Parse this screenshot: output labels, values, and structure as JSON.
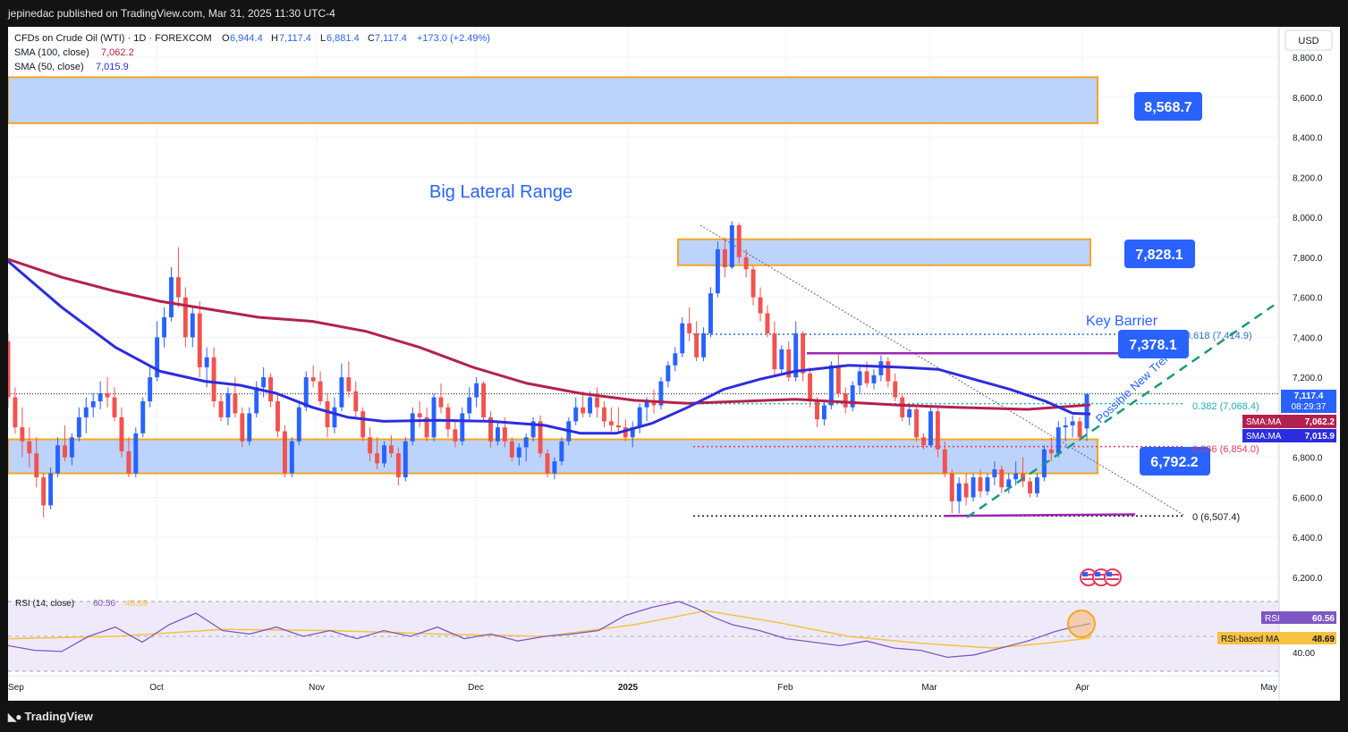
{
  "header": {
    "publisher_line": "jepinedac published on TradingView.com, Mar 31, 2025 11:30 UTC-4"
  },
  "footer": {
    "brand": "TradingView",
    "brand_icon": "tradingview-logo-icon"
  },
  "legend": {
    "symbol_line_prefix": "CFDs on Crude Oil (WTI) · 1D · FOREXCOM",
    "open_label": "O",
    "open": "6,944.4",
    "high_label": "H",
    "high": "7,117.4",
    "low_label": "L",
    "low": "6,881.4",
    "close_label": "C",
    "close": "7,117.4",
    "change": "+173.0 (+2.49%)",
    "sma100_label": "SMA (100, close)",
    "sma100_value": "7,062.2",
    "sma50_label": "SMA (50, close)",
    "sma50_value": "7,015.9"
  },
  "price_axis": {
    "currency": "USD",
    "ticks": [
      "8,800.0",
      "8,600.0",
      "8,400.0",
      "8,200.0",
      "8,000.0",
      "7,800.0",
      "7,600.0",
      "7,400.0",
      "7,200.0",
      "7,000.0",
      "6,800.0",
      "6,600.0",
      "6,400.0",
      "6,200.0"
    ],
    "last_price": "7,117.4",
    "countdown": "08:29:37",
    "sma100_tag": "SMA:MA",
    "sma100_tag_value": "7,062.2",
    "sma50_tag": "SMA:MA",
    "sma50_tag_value": "7,015.9"
  },
  "time_axis": {
    "labels": [
      "Sep",
      "Oct",
      "Nov",
      "Dec",
      "2025",
      "Feb",
      "Mar",
      "Apr",
      "May"
    ]
  },
  "annotations": {
    "range_title": "Big Lateral Range",
    "level_top": "8,568.7",
    "level_upper": "7,828.1",
    "key_barrier": "Key Barrier",
    "level_barrier": "7,378.1",
    "level_support": "6,792.2",
    "fib_618": "0.618 (7,414.9)",
    "fib_382": "0.382 (7,068.4)",
    "fib_236": "0.236 (6,854.0)",
    "fib_0": "0 (6,507.4)",
    "trend_label": "Possible New Trend"
  },
  "rsi": {
    "legend_label": "RSI (14, close)",
    "value": "60.56",
    "ma_value": "48.69",
    "tag_label": "RSI",
    "tag_ma_label": "RSI-based MA",
    "tick_40": "40.00"
  },
  "colors": {
    "candle_up": "#2962ff",
    "candle_down": "#f05350",
    "sma100": "#b3214e",
    "sma50": "#2c2ce0",
    "zone_fill": "#bcd3fb",
    "zone_border": "#f5a623",
    "label_blue": "#2962ff",
    "purple_line": "#9c27b0",
    "trend_teal": "#1a9a7a",
    "fib_blue": "#2d6fd1",
    "fib_teal": "#1ab0b0",
    "fib_red": "#e53960",
    "rsi_line": "#7e57c2",
    "rsi_ma": "#f5c242"
  },
  "chart_data": {
    "type": "candlestick",
    "title": "CFDs on Crude Oil (WTI) · 1D · FOREXCOM",
    "ylabel": "USD",
    "ylim": [
      6100,
      8950
    ],
    "grid": true,
    "x_range": [
      "2024-09-01",
      "2025-05-01"
    ],
    "ohlc_note": "daily candles, approximate",
    "candles": [
      [
        7380,
        7420,
        7050,
        7100
      ],
      [
        7100,
        7150,
        6920,
        6950
      ],
      [
        6950,
        7050,
        6800,
        6880
      ],
      [
        6880,
        6950,
        6750,
        6820
      ],
      [
        6820,
        6900,
        6650,
        6700
      ],
      [
        6700,
        6720,
        6500,
        6560
      ],
      [
        6560,
        6750,
        6540,
        6720
      ],
      [
        6720,
        6900,
        6700,
        6860
      ],
      [
        6860,
        6960,
        6780,
        6800
      ],
      [
        6800,
        6920,
        6760,
        6900
      ],
      [
        6900,
        7050,
        6880,
        7000
      ],
      [
        7000,
        7100,
        6920,
        7050
      ],
      [
        7050,
        7120,
        7000,
        7080
      ],
      [
        7080,
        7180,
        7040,
        7120
      ],
      [
        7120,
        7200,
        7050,
        7100
      ],
      [
        7100,
        7150,
        6980,
        7000
      ],
      [
        7000,
        7050,
        6800,
        6830
      ],
      [
        6830,
        6900,
        6700,
        6720
      ],
      [
        6720,
        6950,
        6700,
        6920
      ],
      [
        6920,
        7100,
        6900,
        7080
      ],
      [
        7080,
        7250,
        7050,
        7200
      ],
      [
        7200,
        7480,
        7180,
        7400
      ],
      [
        7400,
        7550,
        7350,
        7500
      ],
      [
        7500,
        7750,
        7480,
        7700
      ],
      [
        7700,
        7850,
        7550,
        7600
      ],
      [
        7600,
        7650,
        7350,
        7400
      ],
      [
        7400,
        7550,
        7350,
        7520
      ],
      [
        7520,
        7580,
        7200,
        7250
      ],
      [
        7250,
        7350,
        7150,
        7300
      ],
      [
        7300,
        7350,
        7050,
        7080
      ],
      [
        7080,
        7120,
        6980,
        7000
      ],
      [
        7000,
        7150,
        6960,
        7120
      ],
      [
        7120,
        7200,
        7000,
        7020
      ],
      [
        7020,
        7050,
        6850,
        6880
      ],
      [
        6880,
        7050,
        6860,
        7020
      ],
      [
        7020,
        7180,
        7000,
        7150
      ],
      [
        7150,
        7250,
        7100,
        7200
      ],
      [
        7200,
        7220,
        7050,
        7080
      ],
      [
        7080,
        7120,
        6900,
        6930
      ],
      [
        6930,
        6960,
        6700,
        6720
      ],
      [
        6720,
        6900,
        6700,
        6880
      ],
      [
        6880,
        7080,
        6860,
        7050
      ],
      [
        7050,
        7230,
        7030,
        7200
      ],
      [
        7200,
        7260,
        7150,
        7180
      ],
      [
        7180,
        7230,
        7060,
        7080
      ],
      [
        7080,
        7120,
        6900,
        6950
      ],
      [
        6950,
        7100,
        6920,
        7050
      ],
      [
        7050,
        7270,
        7030,
        7200
      ],
      [
        7200,
        7280,
        7100,
        7130
      ],
      [
        7130,
        7180,
        7000,
        7030
      ],
      [
        7030,
        7050,
        6880,
        6900
      ],
      [
        6900,
        6950,
        6780,
        6820
      ],
      [
        6820,
        6900,
        6740,
        6770
      ],
      [
        6770,
        6880,
        6750,
        6860
      ],
      [
        6860,
        6910,
        6800,
        6820
      ],
      [
        6820,
        6850,
        6660,
        6700
      ],
      [
        6700,
        6900,
        6680,
        6880
      ],
      [
        6880,
        7050,
        6860,
        7020
      ],
      [
        7020,
        7080,
        6950,
        7000
      ],
      [
        7000,
        7050,
        6880,
        6900
      ],
      [
        6900,
        7120,
        6880,
        7100
      ],
      [
        7100,
        7170,
        7020,
        7050
      ],
      [
        7050,
        7070,
        6900,
        6940
      ],
      [
        6940,
        6990,
        6850,
        6880
      ],
      [
        6880,
        7050,
        6860,
        7020
      ],
      [
        7020,
        7150,
        6980,
        7100
      ],
      [
        7100,
        7200,
        7050,
        7170
      ],
      [
        7170,
        7180,
        6980,
        7000
      ],
      [
        7000,
        7030,
        6850,
        6880
      ],
      [
        6880,
        6980,
        6860,
        6950
      ],
      [
        6950,
        7000,
        6850,
        6880
      ],
      [
        6880,
        6900,
        6780,
        6800
      ],
      [
        6800,
        6870,
        6760,
        6850
      ],
      [
        6850,
        6920,
        6780,
        6900
      ],
      [
        6900,
        7000,
        6880,
        6980
      ],
      [
        6980,
        7010,
        6800,
        6820
      ],
      [
        6820,
        6840,
        6700,
        6720
      ],
      [
        6720,
        6800,
        6690,
        6780
      ],
      [
        6780,
        6900,
        6760,
        6880
      ],
      [
        6880,
        7000,
        6860,
        6980
      ],
      [
        6980,
        7100,
        6960,
        7050
      ],
      [
        7050,
        7130,
        7000,
        7020
      ],
      [
        7020,
        7130,
        7000,
        7100
      ],
      [
        7100,
        7150,
        7000,
        7050
      ],
      [
        7050,
        7080,
        6950,
        6980
      ],
      [
        6980,
        7050,
        6930,
        6960
      ],
      [
        6960,
        7050,
        6920,
        6950
      ],
      [
        6950,
        6990,
        6880,
        6900
      ],
      [
        6900,
        6980,
        6850,
        6950
      ],
      [
        6950,
        7070,
        6920,
        7050
      ],
      [
        7050,
        7100,
        6980,
        7080
      ],
      [
        7080,
        7140,
        7020,
        7060
      ],
      [
        7060,
        7200,
        7040,
        7180
      ],
      [
        7180,
        7280,
        7150,
        7260
      ],
      [
        7260,
        7350,
        7230,
        7320
      ],
      [
        7320,
        7500,
        7300,
        7470
      ],
      [
        7470,
        7550,
        7380,
        7420
      ],
      [
        7420,
        7480,
        7280,
        7300
      ],
      [
        7300,
        7450,
        7280,
        7420
      ],
      [
        7420,
        7650,
        7400,
        7620
      ],
      [
        7620,
        7880,
        7600,
        7840
      ],
      [
        7840,
        7900,
        7700,
        7750
      ],
      [
        7750,
        7980,
        7740,
        7960
      ],
      [
        7960,
        7970,
        7770,
        7800
      ],
      [
        7800,
        7840,
        7700,
        7740
      ],
      [
        7740,
        7760,
        7560,
        7600
      ],
      [
        7600,
        7650,
        7480,
        7520
      ],
      [
        7520,
        7560,
        7400,
        7420
      ],
      [
        7420,
        7480,
        7200,
        7240
      ],
      [
        7240,
        7360,
        7220,
        7340
      ],
      [
        7340,
        7380,
        7180,
        7200
      ],
      [
        7200,
        7480,
        7180,
        7420
      ],
      [
        7420,
        7430,
        7180,
        7220
      ],
      [
        7220,
        7250,
        7050,
        7080
      ],
      [
        7080,
        7100,
        6950,
        6990
      ],
      [
        6990,
        7080,
        6960,
        7060
      ],
      [
        7060,
        7280,
        7040,
        7260
      ],
      [
        7260,
        7320,
        7100,
        7120
      ],
      [
        7120,
        7150,
        7020,
        7050
      ],
      [
        7050,
        7180,
        7030,
        7160
      ],
      [
        7160,
        7250,
        7120,
        7230
      ],
      [
        7230,
        7280,
        7150,
        7170
      ],
      [
        7170,
        7240,
        7140,
        7210
      ],
      [
        7210,
        7310,
        7180,
        7280
      ],
      [
        7280,
        7300,
        7150,
        7180
      ],
      [
        7180,
        7220,
        7080,
        7100
      ],
      [
        7100,
        7120,
        6980,
        7000
      ],
      [
        7000,
        7060,
        6960,
        7040
      ],
      [
        7040,
        7050,
        6880,
        6900
      ],
      [
        6900,
        6920,
        6840,
        6860
      ],
      [
        6860,
        7060,
        6850,
        7030
      ],
      [
        7030,
        7050,
        6800,
        6840
      ],
      [
        6840,
        6880,
        6700,
        6720
      ],
      [
        6720,
        6740,
        6520,
        6580
      ],
      [
        6580,
        6700,
        6520,
        6670
      ],
      [
        6670,
        6720,
        6560,
        6600
      ],
      [
        6600,
        6720,
        6580,
        6700
      ],
      [
        6700,
        6740,
        6600,
        6630
      ],
      [
        6630,
        6720,
        6610,
        6700
      ],
      [
        6700,
        6780,
        6660,
        6740
      ],
      [
        6740,
        6760,
        6620,
        6650
      ],
      [
        6650,
        6720,
        6620,
        6690
      ],
      [
        6690,
        6780,
        6660,
        6720
      ],
      [
        6720,
        6800,
        6650,
        6680
      ],
      [
        6680,
        6700,
        6600,
        6620
      ],
      [
        6620,
        6720,
        6600,
        6700
      ],
      [
        6700,
        6860,
        6680,
        6840
      ],
      [
        6840,
        6900,
        6780,
        6820
      ],
      [
        6820,
        6980,
        6800,
        6950
      ],
      [
        6950,
        7000,
        6880,
        6960
      ],
      [
        6960,
        7010,
        6900,
        6980
      ],
      [
        6980,
        7000,
        6880,
        6900
      ],
      [
        6944.4,
        7117.4,
        6881.4,
        7117.4
      ]
    ],
    "sma100": [
      [
        0,
        7790
      ],
      [
        60,
        7700
      ],
      [
        120,
        7630
      ],
      [
        170,
        7580
      ],
      [
        225,
        7540
      ],
      [
        280,
        7500
      ],
      [
        340,
        7480
      ],
      [
        400,
        7430
      ],
      [
        460,
        7350
      ],
      [
        520,
        7250
      ],
      [
        580,
        7170
      ],
      [
        640,
        7120
      ],
      [
        700,
        7085
      ],
      [
        760,
        7070
      ],
      [
        820,
        7080
      ],
      [
        880,
        7090
      ],
      [
        940,
        7075
      ],
      [
        1000,
        7060
      ],
      [
        1060,
        7050
      ],
      [
        1140,
        7040
      ],
      [
        1210,
        7062
      ]
    ],
    "sma50": [
      [
        0,
        7780
      ],
      [
        60,
        7550
      ],
      [
        120,
        7350
      ],
      [
        170,
        7230
      ],
      [
        220,
        7180
      ],
      [
        260,
        7160
      ],
      [
        300,
        7120
      ],
      [
        340,
        7050
      ],
      [
        380,
        7000
      ],
      [
        420,
        6980
      ],
      [
        480,
        6985
      ],
      [
        540,
        6980
      ],
      [
        600,
        6960
      ],
      [
        640,
        6920
      ],
      [
        680,
        6920
      ],
      [
        720,
        6970
      ],
      [
        760,
        7050
      ],
      [
        800,
        7140
      ],
      [
        840,
        7190
      ],
      [
        880,
        7230
      ],
      [
        940,
        7260
      ],
      [
        1000,
        7250
      ],
      [
        1040,
        7240
      ],
      [
        1080,
        7190
      ],
      [
        1120,
        7140
      ],
      [
        1160,
        7080
      ],
      [
        1190,
        7020
      ],
      [
        1210,
        7016
      ]
    ],
    "rsi_series": [
      [
        0,
        42
      ],
      [
        30,
        38
      ],
      [
        60,
        37
      ],
      [
        90,
        50
      ],
      [
        120,
        58
      ],
      [
        150,
        45
      ],
      [
        180,
        60
      ],
      [
        210,
        70
      ],
      [
        240,
        55
      ],
      [
        270,
        52
      ],
      [
        300,
        58
      ],
      [
        330,
        50
      ],
      [
        360,
        55
      ],
      [
        390,
        48
      ],
      [
        420,
        55
      ],
      [
        450,
        50
      ],
      [
        480,
        58
      ],
      [
        510,
        48
      ],
      [
        540,
        52
      ],
      [
        570,
        46
      ],
      [
        600,
        50
      ],
      [
        630,
        52
      ],
      [
        660,
        55
      ],
      [
        690,
        68
      ],
      [
        720,
        75
      ],
      [
        750,
        80
      ],
      [
        770,
        74
      ],
      [
        790,
        66
      ],
      [
        810,
        60
      ],
      [
        840,
        55
      ],
      [
        870,
        48
      ],
      [
        900,
        45
      ],
      [
        930,
        42
      ],
      [
        960,
        46
      ],
      [
        990,
        40
      ],
      [
        1020,
        38
      ],
      [
        1050,
        32
      ],
      [
        1080,
        34
      ],
      [
        1110,
        40
      ],
      [
        1140,
        46
      ],
      [
        1170,
        54
      ],
      [
        1190,
        58
      ],
      [
        1210,
        61
      ]
    ],
    "rsi_ma_series": [
      [
        0,
        48
      ],
      [
        120,
        50
      ],
      [
        240,
        56
      ],
      [
        360,
        55
      ],
      [
        480,
        52
      ],
      [
        600,
        50
      ],
      [
        700,
        60
      ],
      [
        780,
        72
      ],
      [
        860,
        62
      ],
      [
        940,
        50
      ],
      [
        1020,
        44
      ],
      [
        1100,
        40
      ],
      [
        1160,
        44
      ],
      [
        1210,
        48.69
      ]
    ]
  }
}
